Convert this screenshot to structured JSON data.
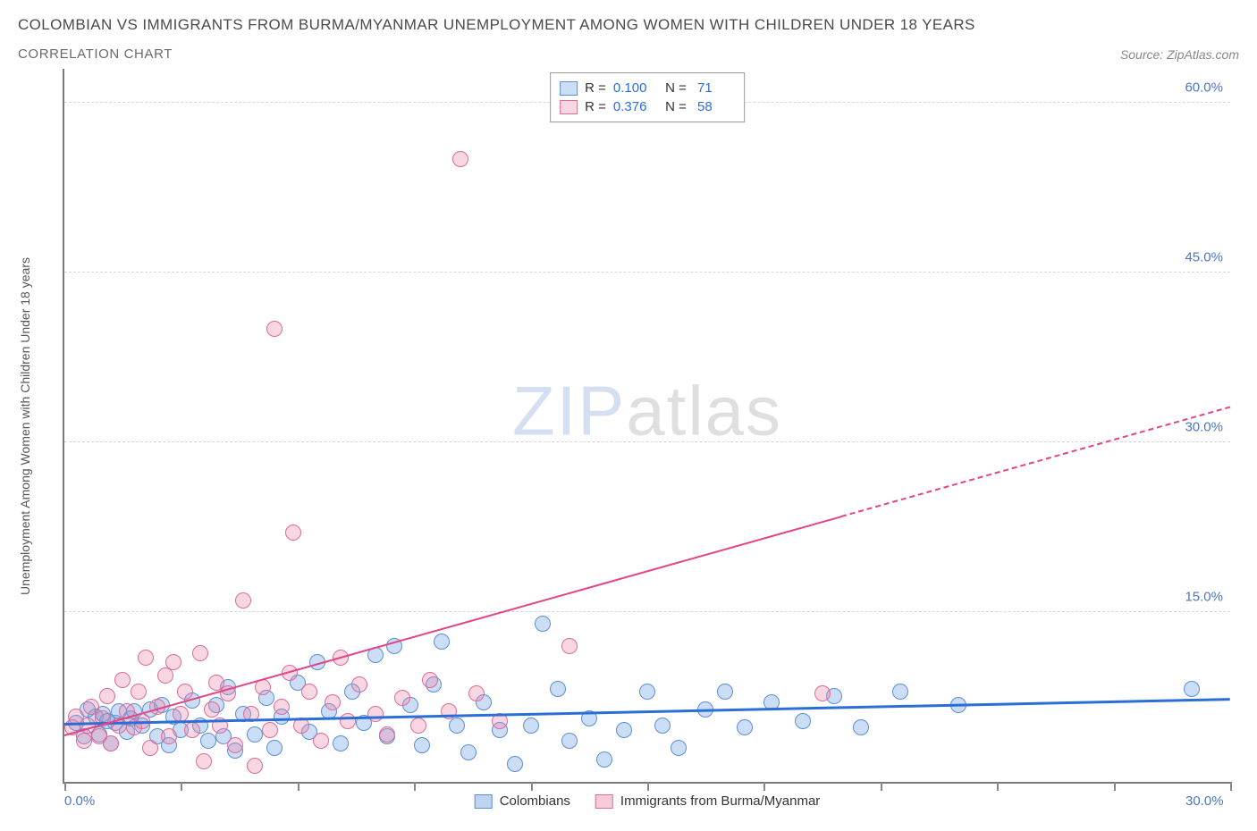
{
  "header": {
    "title": "COLOMBIAN VS IMMIGRANTS FROM BURMA/MYANMAR UNEMPLOYMENT AMONG WOMEN WITH CHILDREN UNDER 18 YEARS",
    "subtitle": "CORRELATION CHART",
    "source": "Source: ZipAtlas.com"
  },
  "chart": {
    "type": "scatter",
    "ylabel": "Unemployment Among Women with Children Under 18 years",
    "watermark_a": "ZIP",
    "watermark_b": "atlas",
    "xlim": [
      0,
      30
    ],
    "ylim": [
      0,
      63
    ],
    "x_ticks": [
      0,
      3,
      6,
      9,
      12,
      15,
      18,
      21,
      24,
      27,
      30
    ],
    "x_axis_labels": [
      {
        "pos": 0,
        "text": "0.0%",
        "align": "left"
      },
      {
        "pos": 30,
        "text": "30.0%",
        "align": "right"
      }
    ],
    "y_gridlines": [
      15,
      30,
      45,
      60
    ],
    "y_tick_labels": [
      {
        "pos": 15,
        "text": "15.0%"
      },
      {
        "pos": 30,
        "text": "30.0%"
      },
      {
        "pos": 45,
        "text": "45.0%"
      },
      {
        "pos": 60,
        "text": "60.0%"
      }
    ],
    "background_color": "#ffffff",
    "grid_color": "#d8d8d8",
    "axis_color": "#7a7a7a",
    "series": [
      {
        "name": "Colombians",
        "color_fill": "rgba(110,160,225,0.35)",
        "color_stroke": "#5a8fd6",
        "marker_radius": 9,
        "R": "0.100",
        "N": "71",
        "trend": {
          "x1": 0,
          "y1": 5.0,
          "x2": 30,
          "y2": 7.2,
          "color": "#2b6fd6",
          "width": 3,
          "dash_after_x": null
        },
        "points": [
          [
            0.3,
            5.2
          ],
          [
            0.5,
            4.0
          ],
          [
            0.6,
            6.4
          ],
          [
            0.8,
            5.8
          ],
          [
            0.9,
            4.2
          ],
          [
            1.0,
            6.0
          ],
          [
            1.1,
            5.4
          ],
          [
            1.2,
            3.4
          ],
          [
            1.3,
            5.2
          ],
          [
            1.4,
            6.2
          ],
          [
            1.6,
            4.4
          ],
          [
            1.7,
            5.6
          ],
          [
            1.8,
            6.2
          ],
          [
            2.0,
            5.0
          ],
          [
            2.2,
            6.4
          ],
          [
            2.4,
            4.0
          ],
          [
            2.5,
            6.8
          ],
          [
            2.7,
            3.2
          ],
          [
            2.8,
            5.8
          ],
          [
            3.0,
            4.6
          ],
          [
            3.3,
            7.2
          ],
          [
            3.5,
            5.0
          ],
          [
            3.7,
            3.6
          ],
          [
            3.9,
            6.8
          ],
          [
            4.1,
            4.0
          ],
          [
            4.2,
            8.4
          ],
          [
            4.4,
            2.8
          ],
          [
            4.6,
            6.0
          ],
          [
            4.9,
            4.2
          ],
          [
            5.2,
            7.4
          ],
          [
            5.4,
            3.0
          ],
          [
            5.6,
            5.8
          ],
          [
            6.0,
            8.8
          ],
          [
            6.3,
            4.4
          ],
          [
            6.5,
            10.6
          ],
          [
            6.8,
            6.2
          ],
          [
            7.1,
            3.4
          ],
          [
            7.4,
            8.0
          ],
          [
            7.7,
            5.2
          ],
          [
            8.0,
            11.2
          ],
          [
            8.3,
            4.0
          ],
          [
            8.5,
            12.0
          ],
          [
            8.9,
            6.8
          ],
          [
            9.2,
            3.2
          ],
          [
            9.5,
            8.6
          ],
          [
            9.7,
            12.4
          ],
          [
            10.1,
            5.0
          ],
          [
            10.4,
            2.6
          ],
          [
            10.8,
            7.0
          ],
          [
            11.2,
            4.6
          ],
          [
            11.6,
            1.6
          ],
          [
            12.0,
            5.0
          ],
          [
            12.3,
            14.0
          ],
          [
            12.7,
            8.2
          ],
          [
            13.0,
            3.6
          ],
          [
            13.5,
            5.6
          ],
          [
            13.9,
            2.0
          ],
          [
            14.4,
            4.6
          ],
          [
            15.0,
            8.0
          ],
          [
            15.4,
            5.0
          ],
          [
            15.8,
            3.0
          ],
          [
            16.5,
            6.4
          ],
          [
            17.0,
            8.0
          ],
          [
            17.5,
            4.8
          ],
          [
            18.2,
            7.0
          ],
          [
            19.0,
            5.4
          ],
          [
            19.8,
            7.6
          ],
          [
            20.5,
            4.8
          ],
          [
            21.5,
            8.0
          ],
          [
            23.0,
            6.8
          ],
          [
            29.0,
            8.2
          ]
        ]
      },
      {
        "name": "Immigrants from Burma/Myanmar",
        "color_fill": "rgba(235,130,165,0.32)",
        "color_stroke": "#e06a98",
        "marker_radius": 9,
        "R": "0.376",
        "N": "58",
        "trend": {
          "x1": 0,
          "y1": 4.0,
          "x2": 30,
          "y2": 33.0,
          "color": "#e24585",
          "width": 2.5,
          "dash_after_x": 20
        },
        "points": [
          [
            0.2,
            4.8
          ],
          [
            0.3,
            5.8
          ],
          [
            0.5,
            3.6
          ],
          [
            0.6,
            5.0
          ],
          [
            0.7,
            6.6
          ],
          [
            0.9,
            4.0
          ],
          [
            1.0,
            5.6
          ],
          [
            1.1,
            7.6
          ],
          [
            1.2,
            3.4
          ],
          [
            1.4,
            5.0
          ],
          [
            1.5,
            9.0
          ],
          [
            1.6,
            6.2
          ],
          [
            1.8,
            4.8
          ],
          [
            1.9,
            8.0
          ],
          [
            2.0,
            5.4
          ],
          [
            2.1,
            11.0
          ],
          [
            2.2,
            3.0
          ],
          [
            2.4,
            6.6
          ],
          [
            2.6,
            9.4
          ],
          [
            2.7,
            4.0
          ],
          [
            2.8,
            10.6
          ],
          [
            3.0,
            6.0
          ],
          [
            3.1,
            8.0
          ],
          [
            3.3,
            4.6
          ],
          [
            3.5,
            11.4
          ],
          [
            3.6,
            1.8
          ],
          [
            3.8,
            6.4
          ],
          [
            3.9,
            8.8
          ],
          [
            4.0,
            5.0
          ],
          [
            4.2,
            7.8
          ],
          [
            4.4,
            3.2
          ],
          [
            4.6,
            16.0
          ],
          [
            4.8,
            6.0
          ],
          [
            4.9,
            1.4
          ],
          [
            5.1,
            8.4
          ],
          [
            5.3,
            4.6
          ],
          [
            5.4,
            40.0
          ],
          [
            5.6,
            6.6
          ],
          [
            5.8,
            9.6
          ],
          [
            5.9,
            22.0
          ],
          [
            6.1,
            5.0
          ],
          [
            6.3,
            8.0
          ],
          [
            6.6,
            3.6
          ],
          [
            6.9,
            7.0
          ],
          [
            7.1,
            11.0
          ],
          [
            7.3,
            5.4
          ],
          [
            7.6,
            8.6
          ],
          [
            8.0,
            6.0
          ],
          [
            8.3,
            4.2
          ],
          [
            8.7,
            7.4
          ],
          [
            9.1,
            5.0
          ],
          [
            9.4,
            9.0
          ],
          [
            9.9,
            6.2
          ],
          [
            10.2,
            55.0
          ],
          [
            10.6,
            7.8
          ],
          [
            11.2,
            5.4
          ],
          [
            13.0,
            12.0
          ],
          [
            19.5,
            7.8
          ]
        ]
      }
    ],
    "legend_bottom": [
      {
        "label": "Colombians",
        "fill": "rgba(110,160,225,0.45)",
        "stroke": "#5a8fd6"
      },
      {
        "label": "Immigrants from Burma/Myanmar",
        "fill": "rgba(235,130,165,0.42)",
        "stroke": "#e06a98"
      }
    ]
  }
}
